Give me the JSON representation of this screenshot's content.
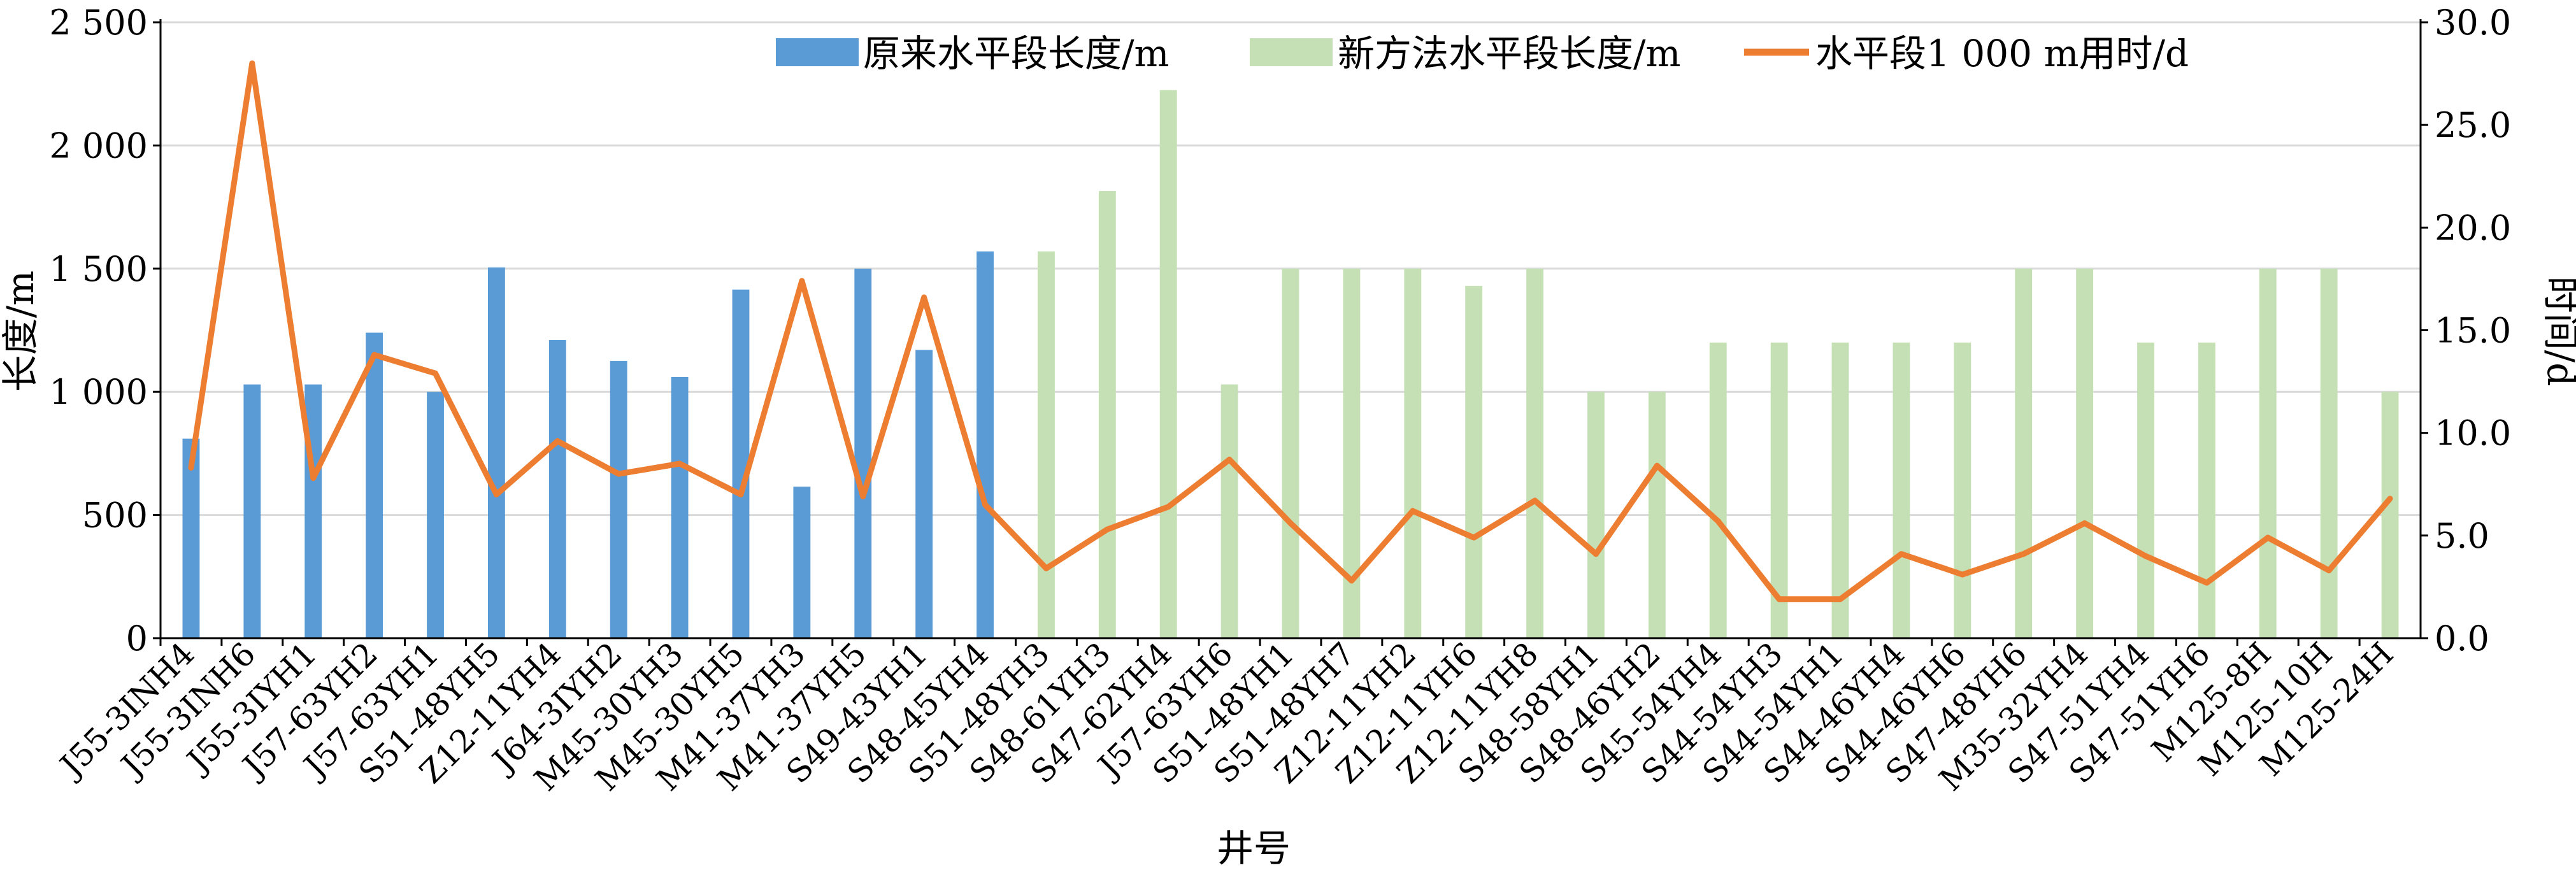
{
  "chart_data": {
    "type": "bar",
    "xlabel": "井号",
    "ylabel_left": "长度/m",
    "ylabel_right": "时间/d",
    "ylim_left": [
      0,
      2500
    ],
    "ylim_right": [
      0,
      30
    ],
    "y_ticks_left": [
      "0",
      "500",
      "1 000",
      "1 500",
      "2 000",
      "2 500"
    ],
    "y_ticks_right": [
      "0.0",
      "5.0",
      "10.0",
      "15.0",
      "20.0",
      "25.0",
      "30.0"
    ],
    "gridlines": true,
    "legend_position": "top",
    "categories": [
      "J55-3INH4",
      "J55-3INH6",
      "J55-3IYH1",
      "J57-63YH2",
      "J57-63YH1",
      "S51-48YH5",
      "Z12-11YH4",
      "J64-3IYH2",
      "M45-30YH3",
      "M45-30YH5",
      "M41-37YH3",
      "M41-37YH5",
      "S49-43YH1",
      "S48-45YH4",
      "S51-48YH3",
      "S48-61YH3",
      "S47-62YH4",
      "J57-63YH6",
      "S51-48YH1",
      "S51-48YH7",
      "Z12-11YH2",
      "Z12-11YH6",
      "Z12-11YH8",
      "S48-58YH1",
      "S48-46YH2",
      "S45-54YH4",
      "S44-54YH3",
      "S44-54YH1",
      "S44-46YH4",
      "S44-46YH6",
      "S47-48YH6",
      "M35-32YH4",
      "S47-51YH4",
      "S47-51YH6",
      "M125-8H",
      "M125-10H",
      "M125-24H"
    ],
    "series": [
      {
        "name": "原来水平段长度/m",
        "type": "bar",
        "axis": "left",
        "color": "#5b9bd5",
        "values": [
          810,
          1030,
          1030,
          1240,
          1000,
          1505,
          1210,
          1125,
          1060,
          1415,
          615,
          1500,
          1170,
          1570,
          null,
          null,
          null,
          null,
          null,
          null,
          null,
          null,
          null,
          null,
          null,
          null,
          null,
          null,
          null,
          null,
          null,
          null,
          null,
          null,
          null,
          null,
          null
        ]
      },
      {
        "name": "新方法水平段长度/m",
        "type": "bar",
        "axis": "left",
        "color": "#c5e0b4",
        "values": [
          null,
          null,
          null,
          null,
          null,
          null,
          null,
          null,
          null,
          null,
          null,
          null,
          null,
          null,
          1570,
          1815,
          2225,
          1030,
          1500,
          1500,
          1500,
          1430,
          1500,
          1000,
          1000,
          1200,
          1200,
          1200,
          1200,
          1200,
          1500,
          1500,
          1200,
          1200,
          1500,
          1500,
          1000
        ]
      },
      {
        "name": "水平段1 000 m用时/d",
        "type": "line",
        "axis": "right",
        "color": "#ed7d31",
        "values": [
          8.3,
          28.0,
          7.8,
          13.8,
          12.9,
          7.0,
          9.6,
          8.0,
          8.5,
          7.0,
          17.4,
          6.9,
          16.6,
          6.5,
          3.4,
          5.3,
          6.4,
          8.7,
          5.6,
          2.8,
          6.2,
          4.9,
          6.7,
          4.1,
          8.4,
          5.7,
          1.9,
          1.9,
          4.1,
          3.1,
          4.1,
          5.6,
          4.0,
          2.7,
          4.9,
          3.3,
          6.8
        ]
      }
    ]
  }
}
